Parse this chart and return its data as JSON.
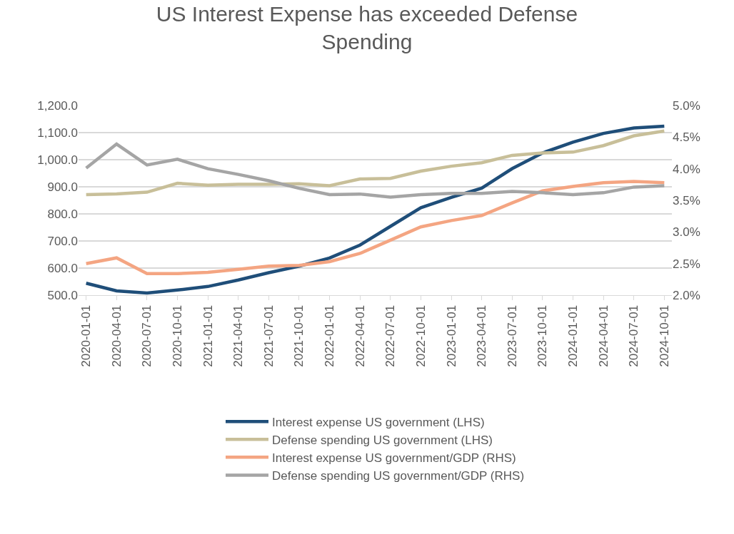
{
  "chart_data": {
    "type": "line",
    "title": "US Interest Expense has exceeded Defense Spending",
    "categories": [
      "2020-01-01",
      "2020-04-01",
      "2020-07-01",
      "2020-10-01",
      "2021-01-01",
      "2021-04-01",
      "2021-07-01",
      "2021-10-01",
      "2022-01-01",
      "2022-04-01",
      "2022-07-01",
      "2022-10-01",
      "2023-01-01",
      "2023-04-01",
      "2023-07-01",
      "2023-10-01",
      "2024-01-01",
      "2024-04-01",
      "2024-07-01",
      "2024-10-01"
    ],
    "series": [
      {
        "name": "Interest expense US government (LHS)",
        "color": "#1f4e79",
        "values": [
          544,
          516,
          508,
          519,
          532,
          556,
          583,
          607,
          637,
          685,
          754,
          823,
          861,
          895,
          967,
          1025,
          1065,
          1097,
          1117,
          1124
        ]
      },
      {
        "name": "Defense spending US government (LHS)",
        "color": "#c8bf99",
        "values": [
          871,
          874,
          880,
          913,
          906,
          909,
          909,
          911,
          904,
          929,
          931,
          958,
          976,
          989,
          1016,
          1025,
          1028,
          1052,
          1088,
          1106
        ]
      },
      {
        "name": "Interest expense US government/GDP (RHS)",
        "color": "#f4a582",
        "axis": "y2",
        "values": [
          2.5,
          2.59,
          2.34,
          2.34,
          2.36,
          2.41,
          2.46,
          2.47,
          2.53,
          2.66,
          2.87,
          3.08,
          3.18,
          3.26,
          3.46,
          3.65,
          3.72,
          3.78,
          3.8,
          3.78
        ]
      },
      {
        "name": "Defense spending US government/GDP (RHS)",
        "color": "#a5a5a5",
        "axis": "y2",
        "values": [
          4.01,
          4.39,
          4.06,
          4.15,
          4.0,
          3.91,
          3.81,
          3.69,
          3.59,
          3.6,
          3.55,
          3.59,
          3.61,
          3.61,
          3.64,
          3.62,
          3.59,
          3.62,
          3.71,
          3.73
        ]
      }
    ],
    "ylim": [
      500,
      1200
    ],
    "yticks": [
      {
        "value": 500,
        "label": "500.0"
      },
      {
        "value": 600,
        "label": "600.0"
      },
      {
        "value": 700,
        "label": "700.0"
      },
      {
        "value": 800,
        "label": "800.0"
      },
      {
        "value": 900,
        "label": "900.0"
      },
      {
        "value": 1000,
        "label": "1,000.0"
      },
      {
        "value": 1100,
        "label": "1,100.0"
      },
      {
        "value": 1200,
        "label": "1,200.0"
      }
    ],
    "y2lim": [
      2.0,
      5.0
    ],
    "y2ticks": [
      {
        "value": 2.0,
        "label": "2.0%"
      },
      {
        "value": 2.5,
        "label": "2.5%"
      },
      {
        "value": 3.0,
        "label": "3.0%"
      },
      {
        "value": 3.5,
        "label": "3.5%"
      },
      {
        "value": 4.0,
        "label": "4.0%"
      },
      {
        "value": 4.5,
        "label": "4.5%"
      },
      {
        "value": 5.0,
        "label": "5.0%"
      }
    ],
    "grid": "y",
    "legend": "bottom",
    "marker": "none",
    "line_style": "solid"
  }
}
